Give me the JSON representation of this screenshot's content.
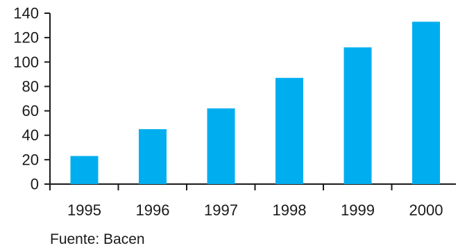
{
  "chart_data": {
    "type": "bar",
    "categories": [
      "1995",
      "1996",
      "1997",
      "1998",
      "1999",
      "2000"
    ],
    "values": [
      23,
      45,
      62,
      87,
      112,
      133
    ],
    "ylim": [
      0,
      140
    ],
    "yticks": [
      0,
      20,
      40,
      60,
      80,
      100,
      120,
      140
    ],
    "ytick_labels": [
      "0",
      "20",
      "40",
      "60",
      "80",
      "100",
      "120",
      "140"
    ],
    "bar_color": "#00aeef",
    "axis_color": "#1a1a1a",
    "grid": false,
    "title": "",
    "xlabel": "",
    "ylabel": ""
  },
  "source_note": "Fuente: Bacen"
}
